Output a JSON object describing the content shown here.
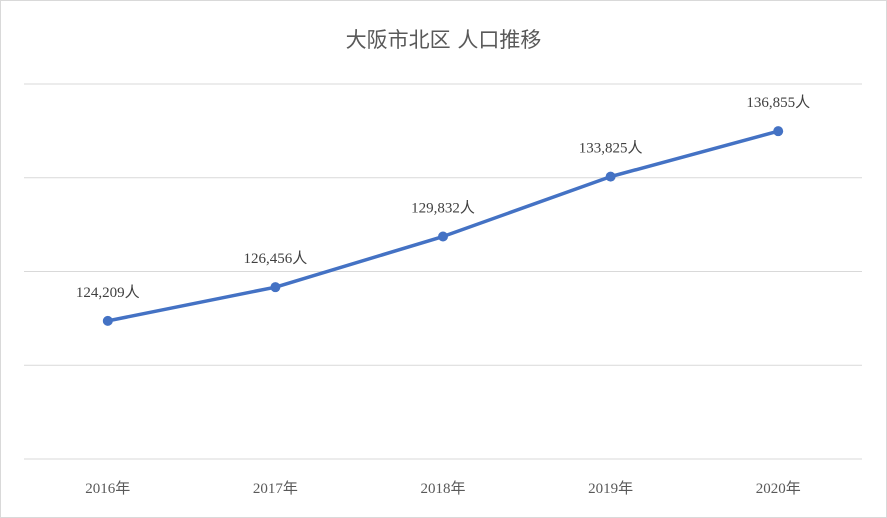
{
  "chart_data": {
    "type": "line",
    "title": "大阪市北区 人口推移",
    "categories": [
      "2016年",
      "2017年",
      "2018年",
      "2019年",
      "2020年"
    ],
    "series": [
      {
        "values": [
          124209,
          126456,
          129832,
          133825,
          136855
        ],
        "labels": [
          "124,209人",
          "126,456人",
          "129,832人",
          "133,825人",
          "136,855人"
        ]
      }
    ],
    "ylim": [
      115000,
      140000
    ],
    "gridlines": true,
    "line_color": "#4472c4",
    "grid_color": "#d9d9d9"
  }
}
